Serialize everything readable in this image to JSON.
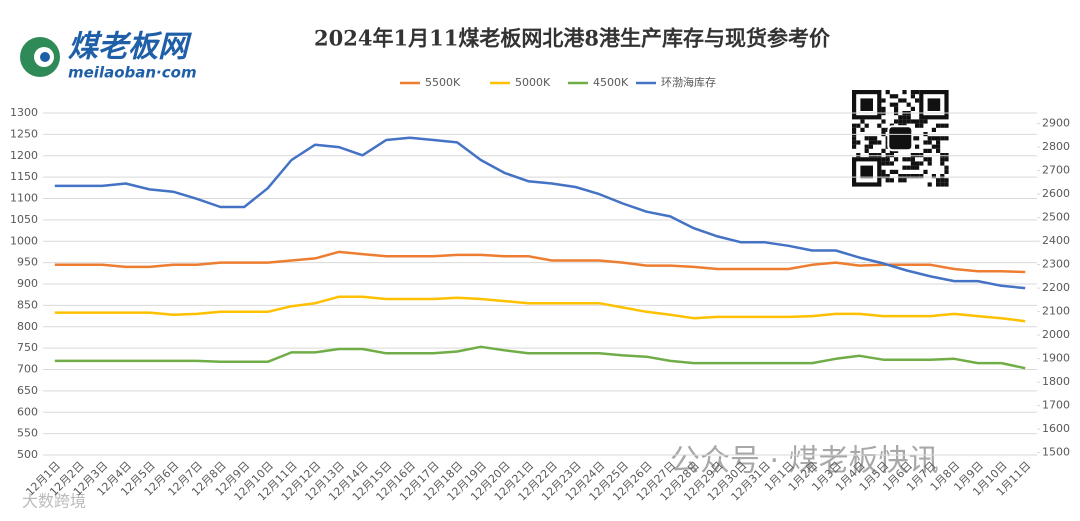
{
  "chart_data": {
    "type": "line",
    "title": "2024年1月11煤老板网北港8港生产库存与现货参考价",
    "logo": {
      "name": "煤老板网",
      "domain": "meilaoban·com"
    },
    "watermark": "公众号 · 煤老板快讯",
    "source_mark": "大数跨境",
    "categories": [
      "12月1日",
      "12月2日",
      "12月3日",
      "12月4日",
      "12月5日",
      "12月6日",
      "12月7日",
      "12月8日",
      "12月9日",
      "12月10日",
      "12月11日",
      "12月12日",
      "12月13日",
      "12月14日",
      "12月15日",
      "12月16日",
      "12月17日",
      "12月18日",
      "12月19日",
      "12月20日",
      "12月21日",
      "12月22日",
      "12月23日",
      "12月24日",
      "12月25日",
      "12月26日",
      "12月27日",
      "12月28日",
      "12月29日",
      "12月30日",
      "12月31日",
      "1月1日",
      "1月2日",
      "1月3日",
      "1月4日",
      "1月5日",
      "1月6日",
      "1月7日",
      "1月8日",
      "1月9日",
      "1月10日",
      "1月11日"
    ],
    "series": [
      {
        "name": "5500K",
        "color": "#ed7d31",
        "values": [
          945,
          945,
          945,
          940,
          940,
          945,
          945,
          950,
          950,
          950,
          955,
          960,
          975,
          970,
          965,
          965,
          965,
          968,
          968,
          965,
          965,
          955,
          955,
          955,
          950,
          943,
          943,
          940,
          935,
          935,
          935,
          935,
          945,
          950,
          943,
          945,
          945,
          945,
          935,
          930,
          930,
          928
        ]
      },
      {
        "name": "5000K",
        "color": "#ffc000",
        "values": [
          833,
          833,
          833,
          833,
          833,
          828,
          830,
          835,
          835,
          835,
          848,
          855,
          870,
          870,
          865,
          865,
          865,
          868,
          865,
          860,
          855,
          855,
          855,
          855,
          845,
          835,
          828,
          820,
          823,
          823,
          823,
          823,
          825,
          830,
          830,
          825,
          825,
          825,
          830,
          825,
          820,
          813
        ]
      },
      {
        "name": "4500K",
        "color": "#70ad47",
        "values": [
          720,
          720,
          720,
          720,
          720,
          720,
          720,
          718,
          718,
          718,
          740,
          740,
          748,
          748,
          738,
          738,
          738,
          742,
          753,
          745,
          738,
          738,
          738,
          738,
          733,
          730,
          720,
          715,
          715,
          715,
          715,
          715,
          715,
          725,
          732,
          723,
          723,
          723,
          725,
          715,
          715,
          703
        ]
      },
      {
        "name": "环渤海库存",
        "color": "#4472c4",
        "axis": "y2",
        "values": [
          2635,
          2635,
          2635,
          2645,
          2620,
          2610,
          2580,
          2545,
          2545,
          2625,
          2745,
          2810,
          2800,
          2765,
          2830,
          2840,
          2830,
          2820,
          2745,
          2690,
          2655,
          2645,
          2630,
          2600,
          2560,
          2525,
          2505,
          2455,
          2420,
          2395,
          2395,
          2380,
          2360,
          2360,
          2330,
          2305,
          2275,
          2250,
          2230,
          2230,
          2210,
          2200
        ]
      }
    ],
    "ylim": [
      500,
      1300
    ],
    "yticks": [
      500,
      550,
      600,
      650,
      700,
      750,
      800,
      850,
      900,
      950,
      1000,
      1050,
      1100,
      1150,
      1200,
      1250,
      1300
    ],
    "y2lim": [
      1490,
      2945
    ],
    "y2ticks": [
      1500,
      1600,
      1700,
      1800,
      1900,
      2000,
      2100,
      2200,
      2300,
      2400,
      2500,
      2600,
      2700,
      2800,
      2900
    ],
    "grid": true,
    "legend": "top"
  }
}
